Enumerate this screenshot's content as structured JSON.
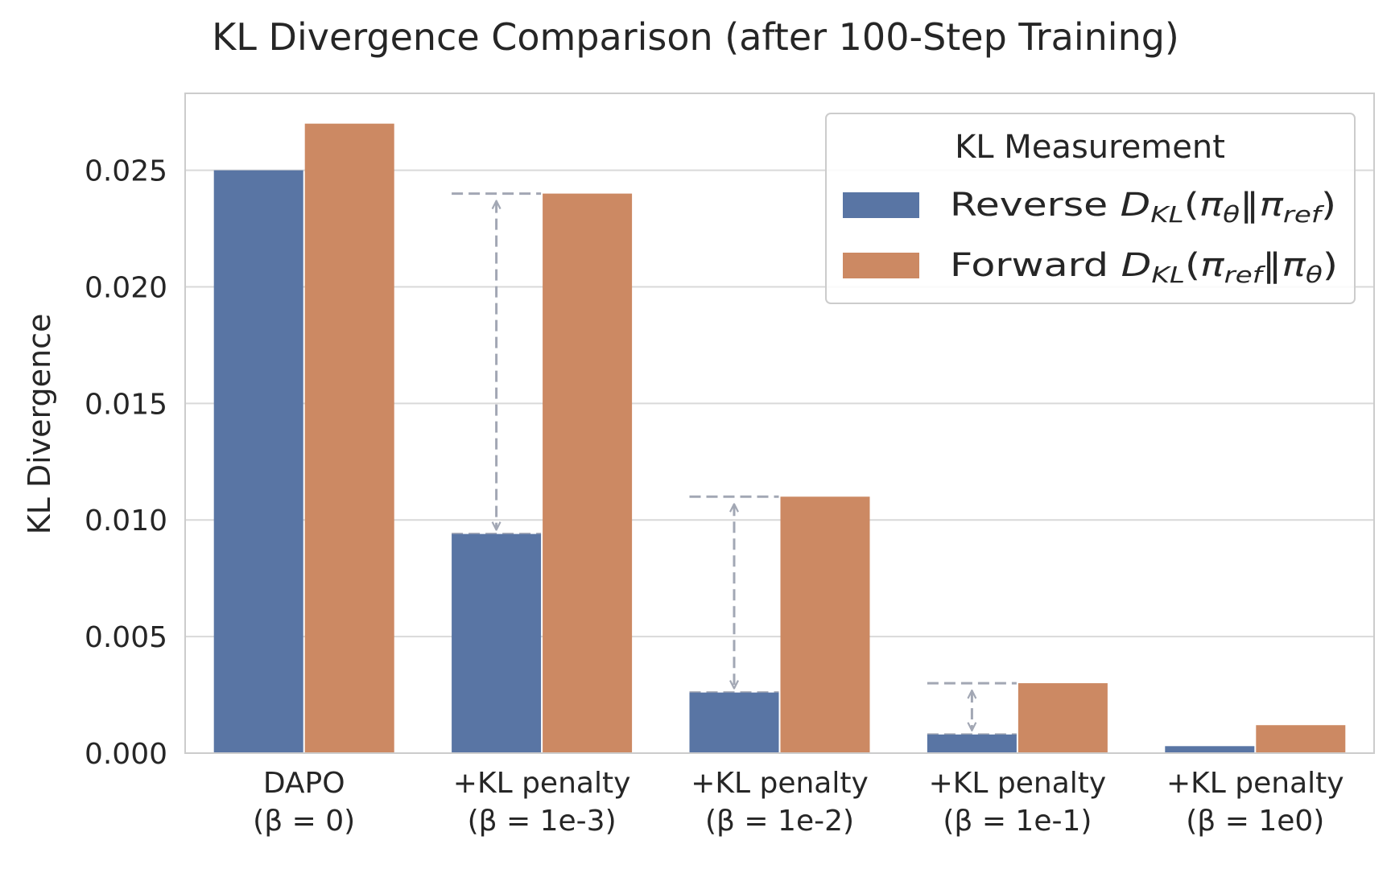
{
  "chart_data": {
    "type": "bar",
    "title": "KL Divergence Comparison (after 100-Step Training)",
    "xlabel": "",
    "ylabel": "KL Divergence",
    "ylim": [
      0,
      0.0283
    ],
    "yticks": [
      "0.000",
      "0.005",
      "0.010",
      "0.015",
      "0.020",
      "0.025"
    ],
    "grid": true,
    "categories": [
      {
        "line1": "DAPO",
        "line2": "(β = 0)"
      },
      {
        "line1": "+KL penalty",
        "line2": "(β = 1e-3)"
      },
      {
        "line1": "+KL penalty",
        "line2": "(β = 1e-2)"
      },
      {
        "line1": "+KL penalty",
        "line2": "(β = 1e-1)"
      },
      {
        "line1": "+KL penalty",
        "line2": "(β = 1e0)"
      }
    ],
    "series": [
      {
        "name": "Reverse D_KL(π_θ‖π_ref)",
        "color": "#5975a4",
        "values": [
          0.025,
          0.0094,
          0.0026,
          0.0008,
          0.0003
        ]
      },
      {
        "name": "Forward D_KL(π_ref‖π_θ)",
        "color": "#cc8963",
        "values": [
          0.027,
          0.024,
          0.011,
          0.003,
          0.0012
        ]
      }
    ],
    "gap_annotations": [
      {
        "category_index": 1,
        "from": 0.0094,
        "to": 0.024
      },
      {
        "category_index": 2,
        "from": 0.0026,
        "to": 0.011
      },
      {
        "category_index": 3,
        "from": 0.0008,
        "to": 0.003
      }
    ],
    "legend": {
      "title": "KL Measurement",
      "placement": "upper-right",
      "entries": [
        {
          "prefix": "Reverse ",
          "d": "D",
          "d_sub": "KL",
          "open": "(",
          "a": "π",
          "a_sub": "θ",
          "sep": "‖",
          "b": "π",
          "b_sub": "ref",
          "close": ")"
        },
        {
          "prefix": "Forward ",
          "d": "D",
          "d_sub": "KL",
          "open": "(",
          "a": "π",
          "a_sub": "ref",
          "sep": "‖",
          "b": "π",
          "b_sub": "θ",
          "close": ")"
        }
      ]
    },
    "colors": {
      "grid": "#d9d9d9",
      "frame": "#cccccc",
      "annotation": "#a2a7b4",
      "background": "#ffffff"
    }
  }
}
